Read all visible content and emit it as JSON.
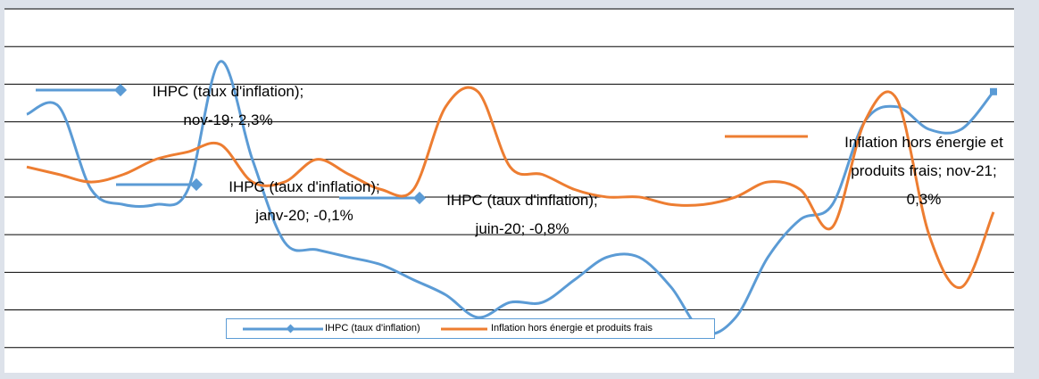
{
  "chart_data": {
    "type": "line",
    "ylim": [
      -1.8,
      3
    ],
    "yticks": [
      -1.5,
      -1,
      -0.5,
      0,
      0.5,
      1,
      1.5,
      2,
      2.5,
      3
    ],
    "grid": true,
    "smooth": true,
    "series": [
      {
        "name": "IHPC (taux d'inflation)",
        "color": "#5b9bd5",
        "values": [
          1.6,
          1.7,
          0.6,
          0.4,
          0.4,
          0.6,
          2.3,
          1.0,
          -0.1,
          -0.2,
          -0.3,
          -0.4,
          -0.6,
          -0.8,
          -1.1,
          -0.9,
          -0.9,
          -0.6,
          -0.3,
          -0.3,
          -0.7,
          -1.3,
          -1.1,
          -0.3,
          0.2,
          0.4,
          1.5,
          1.7,
          1.4,
          1.4,
          1.9
        ],
        "value_labels": [
          null,
          null,
          null,
          null,
          null,
          null,
          "IHPC (taux d'inflation); nov-19; 2,3%",
          null,
          "IHPC (taux d'inflation); janv-20; -0,1%",
          null,
          null,
          null,
          null,
          "IHPC (taux d'inflation); juin-20; -0,8%",
          null,
          null,
          null,
          null,
          null,
          null,
          null,
          null,
          null,
          null,
          null,
          null,
          null,
          null,
          null,
          null,
          null
        ]
      },
      {
        "name": "Inflation hors énergie et produits frais",
        "color": "#ed7d31",
        "values": [
          0.9,
          0.8,
          0.7,
          0.8,
          1.0,
          1.1,
          1.2,
          0.7,
          0.7,
          1.0,
          0.8,
          0.6,
          0.6,
          1.7,
          1.9,
          0.9,
          0.8,
          0.6,
          0.5,
          0.5,
          0.4,
          0.4,
          0.5,
          0.7,
          0.6,
          0.1,
          1.5,
          1.8,
          0.0,
          -0.7,
          0.3
        ],
        "value_labels": [
          null,
          null,
          null,
          null,
          null,
          null,
          null,
          null,
          null,
          null,
          null,
          null,
          null,
          null,
          null,
          null,
          null,
          null,
          null,
          null,
          null,
          null,
          null,
          null,
          null,
          null,
          null,
          null,
          null,
          null,
          "Inflation hors énergie et produits frais; nov-21; 0,3%"
        ]
      }
    ]
  }
}
